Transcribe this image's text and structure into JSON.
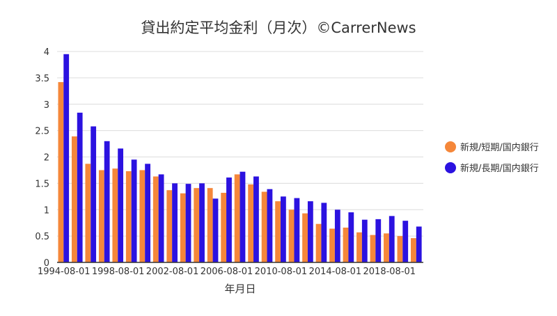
{
  "chart_data": {
    "type": "bar",
    "title": "貸出約定平均金利（月次）©CarrerNews",
    "xlabel": "年月日",
    "ylabel": "",
    "ylim": [
      0,
      4
    ],
    "y_ticks": [
      "0",
      "0.5",
      "1",
      "1.5",
      "2",
      "2.5",
      "3",
      "3.5",
      "4"
    ],
    "x_tick_labels": [
      "1994-08-01",
      "1998-08-01",
      "2002-08-01",
      "2006-08-01",
      "2010-08-01",
      "2014-08-01",
      "2018-08-01"
    ],
    "grid": true,
    "legend_position": "right",
    "categories": [
      "1994-08-01",
      "1995-08-01",
      "1996-08-01",
      "1997-08-01",
      "1998-08-01",
      "1999-08-01",
      "2000-08-01",
      "2001-08-01",
      "2002-08-01",
      "2003-08-01",
      "2004-08-01",
      "2005-08-01",
      "2006-08-01",
      "2007-08-01",
      "2008-08-01",
      "2009-08-01",
      "2010-08-01",
      "2011-08-01",
      "2012-08-01",
      "2013-08-01",
      "2014-08-01",
      "2015-08-01",
      "2016-08-01",
      "2017-08-01",
      "2018-08-01",
      "2019-08-01",
      "2020-08-01"
    ],
    "series": [
      {
        "name": "新規/短期/国内銀行",
        "color": "#f5873a",
        "values": [
          3.42,
          2.39,
          1.87,
          1.75,
          1.78,
          1.73,
          1.75,
          1.63,
          1.37,
          1.31,
          1.41,
          1.41,
          1.32,
          1.67,
          1.48,
          1.34,
          1.16,
          1.0,
          0.93,
          0.73,
          0.64,
          0.66,
          0.57,
          0.52,
          0.55,
          0.5,
          0.46
        ]
      },
      {
        "name": "新規/長期/国内銀行",
        "color": "#2b12e0",
        "values": [
          3.95,
          2.84,
          2.58,
          2.3,
          2.16,
          1.95,
          1.87,
          1.67,
          1.5,
          1.49,
          1.5,
          1.21,
          1.61,
          1.72,
          1.63,
          1.39,
          1.25,
          1.22,
          1.16,
          1.13,
          1.0,
          0.95,
          0.81,
          0.82,
          0.88,
          0.79,
          0.68
        ]
      }
    ]
  }
}
